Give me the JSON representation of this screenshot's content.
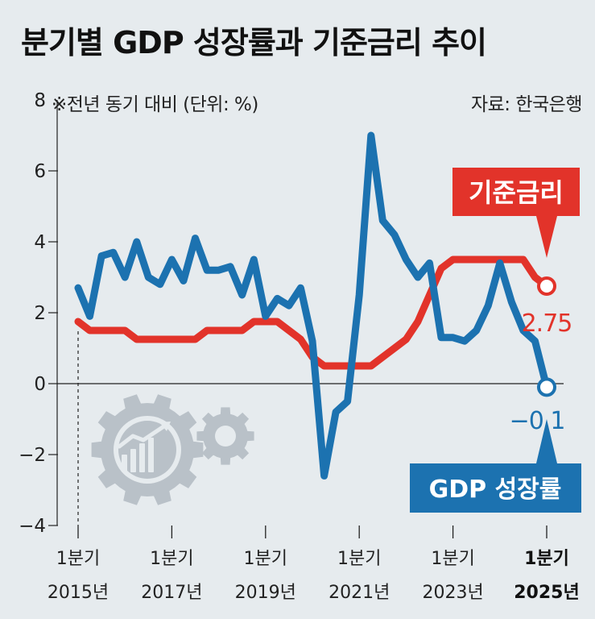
{
  "title": "분기별 GDP 성장률과 기준금리 추이",
  "note": "※전년 동기 대비 (단위: %)",
  "source": "자료: 한국은행",
  "colors": {
    "gdp": "#1c72b0",
    "rate": "#e2332a",
    "background": "#e6ebee",
    "gear": "#b9c1c8"
  },
  "icons": [
    "gear-chart-icon"
  ],
  "chart_data": {
    "type": "line",
    "title": "분기별 GDP 성장률과 기준금리 추이",
    "ylabel": "※전년 동기 대비 (단위: %)",
    "ylim": [
      -4,
      8
    ],
    "y_ticks": [
      "8",
      "6",
      "4",
      "2",
      "0",
      "−2",
      "−4"
    ],
    "x_ticks": [
      {
        "quarter": "1분기",
        "year": "2015년",
        "index": 0
      },
      {
        "quarter": "1분기",
        "year": "2017년",
        "index": 8
      },
      {
        "quarter": "1분기",
        "year": "2019년",
        "index": 16
      },
      {
        "quarter": "1분기",
        "year": "2021년",
        "index": 24
      },
      {
        "quarter": "1분기",
        "year": "2023년",
        "index": 32
      },
      {
        "quarter": "1분기",
        "year": "2025년",
        "index": 40,
        "bold": true
      }
    ],
    "x_periods": [
      "2015Q1",
      "2015Q2",
      "2015Q3",
      "2015Q4",
      "2016Q1",
      "2016Q2",
      "2016Q3",
      "2016Q4",
      "2017Q1",
      "2017Q2",
      "2017Q3",
      "2017Q4",
      "2018Q1",
      "2018Q2",
      "2018Q3",
      "2018Q4",
      "2019Q1",
      "2019Q2",
      "2019Q3",
      "2019Q4",
      "2020Q1",
      "2020Q2",
      "2020Q3",
      "2020Q4",
      "2021Q1",
      "2021Q2",
      "2021Q3",
      "2021Q4",
      "2022Q1",
      "2022Q2",
      "2022Q3",
      "2022Q4",
      "2023Q1",
      "2023Q2",
      "2023Q3",
      "2023Q4",
      "2024Q1",
      "2024Q2",
      "2024Q3",
      "2024Q4",
      "2025Q1"
    ],
    "series": [
      {
        "name": "기준금리",
        "key": "rate",
        "end_label": "2.75",
        "values": [
          1.75,
          1.5,
          1.5,
          1.5,
          1.5,
          1.25,
          1.25,
          1.25,
          1.25,
          1.25,
          1.25,
          1.5,
          1.5,
          1.5,
          1.5,
          1.75,
          1.75,
          1.75,
          1.5,
          1.25,
          0.75,
          0.5,
          0.5,
          0.5,
          0.5,
          0.5,
          0.75,
          1.0,
          1.25,
          1.75,
          2.5,
          3.25,
          3.5,
          3.5,
          3.5,
          3.5,
          3.5,
          3.5,
          3.5,
          3.0,
          2.75
        ]
      },
      {
        "name": "GDP 성장률",
        "key": "gdp",
        "end_label": "−0.1",
        "values": [
          2.7,
          1.9,
          3.6,
          3.7,
          3.0,
          4.0,
          3.0,
          2.8,
          3.5,
          2.9,
          4.1,
          3.2,
          3.2,
          3.3,
          2.5,
          3.5,
          1.9,
          2.4,
          2.2,
          2.7,
          1.2,
          -2.6,
          -0.8,
          -0.5,
          2.5,
          7.0,
          4.6,
          4.2,
          3.5,
          3.0,
          3.4,
          1.3,
          1.3,
          1.2,
          1.5,
          2.2,
          3.4,
          2.3,
          1.5,
          1.2,
          -0.1
        ]
      }
    ]
  }
}
